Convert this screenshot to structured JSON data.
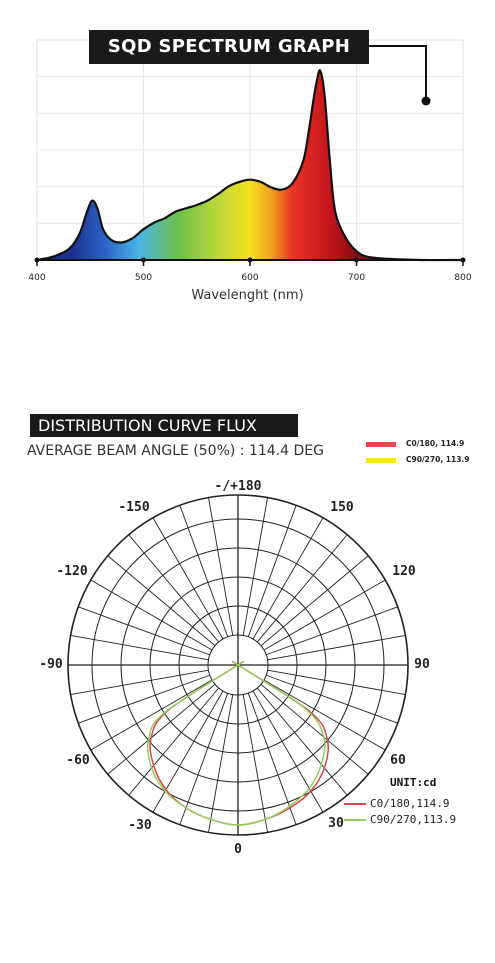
{
  "chart_data": [
    {
      "type": "area",
      "title": "SQD SPECTRUM GRAPH",
      "xlabel": "Wavelenght (nm)",
      "ylabel": "",
      "xlim": [
        400,
        800
      ],
      "ylim": [
        0,
        100
      ],
      "x_ticks": [
        "400",
        "500",
        "600",
        "700",
        "800"
      ],
      "grid": true,
      "series": [
        {
          "x": [
            400,
            415,
            430,
            440,
            447,
            452,
            457,
            462,
            470,
            480,
            490,
            500,
            510,
            520,
            530,
            540,
            550,
            560,
            570,
            580,
            590,
            600,
            610,
            620,
            630,
            640,
            650,
            655,
            660,
            663,
            666,
            670,
            675,
            680,
            690,
            700,
            710,
            730,
            760,
            800
          ],
          "y": [
            0,
            1.5,
            5,
            12,
            22,
            27,
            23,
            14,
            9,
            8,
            10,
            14,
            17,
            19,
            22,
            23.5,
            25,
            27,
            30,
            33.5,
            35.5,
            36.5,
            35.5,
            33,
            32,
            35,
            45,
            58,
            74,
            82,
            86,
            75,
            45,
            22,
            10,
            4,
            1.5,
            0.5,
            0,
            0
          ]
        }
      ],
      "gradient_colors": [
        "#1e2f8f",
        "#2a64c8",
        "#4ab4e6",
        "#6cc04a",
        "#b8d63a",
        "#f5e21e",
        "#f0a020",
        "#e83222",
        "#c8161e",
        "#8a0c12"
      ]
    },
    {
      "type": "polar",
      "title": "DISTRIBUTION CURVE FLUX",
      "subtitle": "AVERAGE BEAM ANGLE  (50%) : 114.4 DEG",
      "angle_labels": [
        "-/+180",
        "150",
        "120",
        "90",
        "60",
        "30",
        "0",
        "-30",
        "-60",
        "-90",
        "-120",
        "-150"
      ],
      "unit": "UNIT:cd",
      "series": [
        {
          "name": "C0/180,114.9",
          "color": "#e0444a",
          "angles": [
            -60,
            -57,
            -50,
            -40,
            -30,
            -20,
            -10,
            0,
            10,
            20,
            30,
            40,
            50,
            57,
            60
          ],
          "values": [
            0,
            0.52,
            0.71,
            0.82,
            0.9,
            0.95,
            0.98,
            1.0,
            0.98,
            0.95,
            0.91,
            0.84,
            0.73,
            0.54,
            0
          ]
        },
        {
          "name": "C90/270,113.9",
          "color": "#8fcf5a",
          "angles": [
            -60,
            -57,
            -50,
            -40,
            -30,
            -20,
            -10,
            0,
            10,
            20,
            30,
            40,
            50,
            57,
            60
          ],
          "values": [
            0,
            0.55,
            0.73,
            0.84,
            0.91,
            0.95,
            0.98,
            1.0,
            0.98,
            0.94,
            0.89,
            0.81,
            0.7,
            0.5,
            0
          ]
        }
      ]
    }
  ],
  "legend_top": [
    {
      "label": "C0/180, 114.9",
      "color": "#e8464e"
    },
    {
      "label": "C90/270, 113.9",
      "color": "#f2e61e"
    }
  ]
}
